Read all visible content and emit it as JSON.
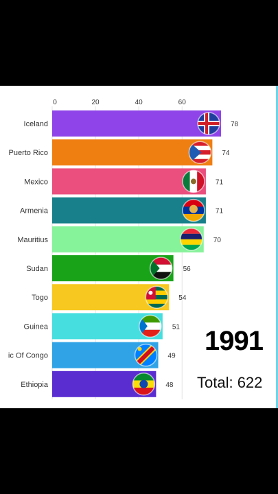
{
  "chart_data": {
    "type": "bar",
    "orientation": "horizontal",
    "categories": [
      "Iceland",
      "Puerto Rico",
      "Mexico",
      "Armenia",
      "Mauritius",
      "Sudan",
      "Togo",
      "Guinea",
      "ic Of Congo",
      "Ethiopia"
    ],
    "values": [
      78,
      74,
      71,
      71,
      70,
      56,
      54,
      51,
      49,
      48
    ],
    "colors": [
      "#8e44e8",
      "#f07f12",
      "#ea4f7e",
      "#17808a",
      "#86f29a",
      "#18a318",
      "#f7c820",
      "#46dedf",
      "#2fa3e6",
      "#5a2dd0"
    ],
    "flags": [
      "iceland-flag",
      "puerto-rico-flag",
      "mexico-flag",
      "armenia-flag",
      "mauritius-flag",
      "sudan-flag",
      "togo-flag",
      "guinea-flag",
      "congo-flag",
      "ethiopia-flag"
    ],
    "xticks": [
      "0",
      "20",
      "40",
      "60"
    ],
    "xlim": [
      0,
      78
    ],
    "grid": true,
    "legend": "none",
    "year": "1991",
    "total_label": "Total: 622"
  }
}
